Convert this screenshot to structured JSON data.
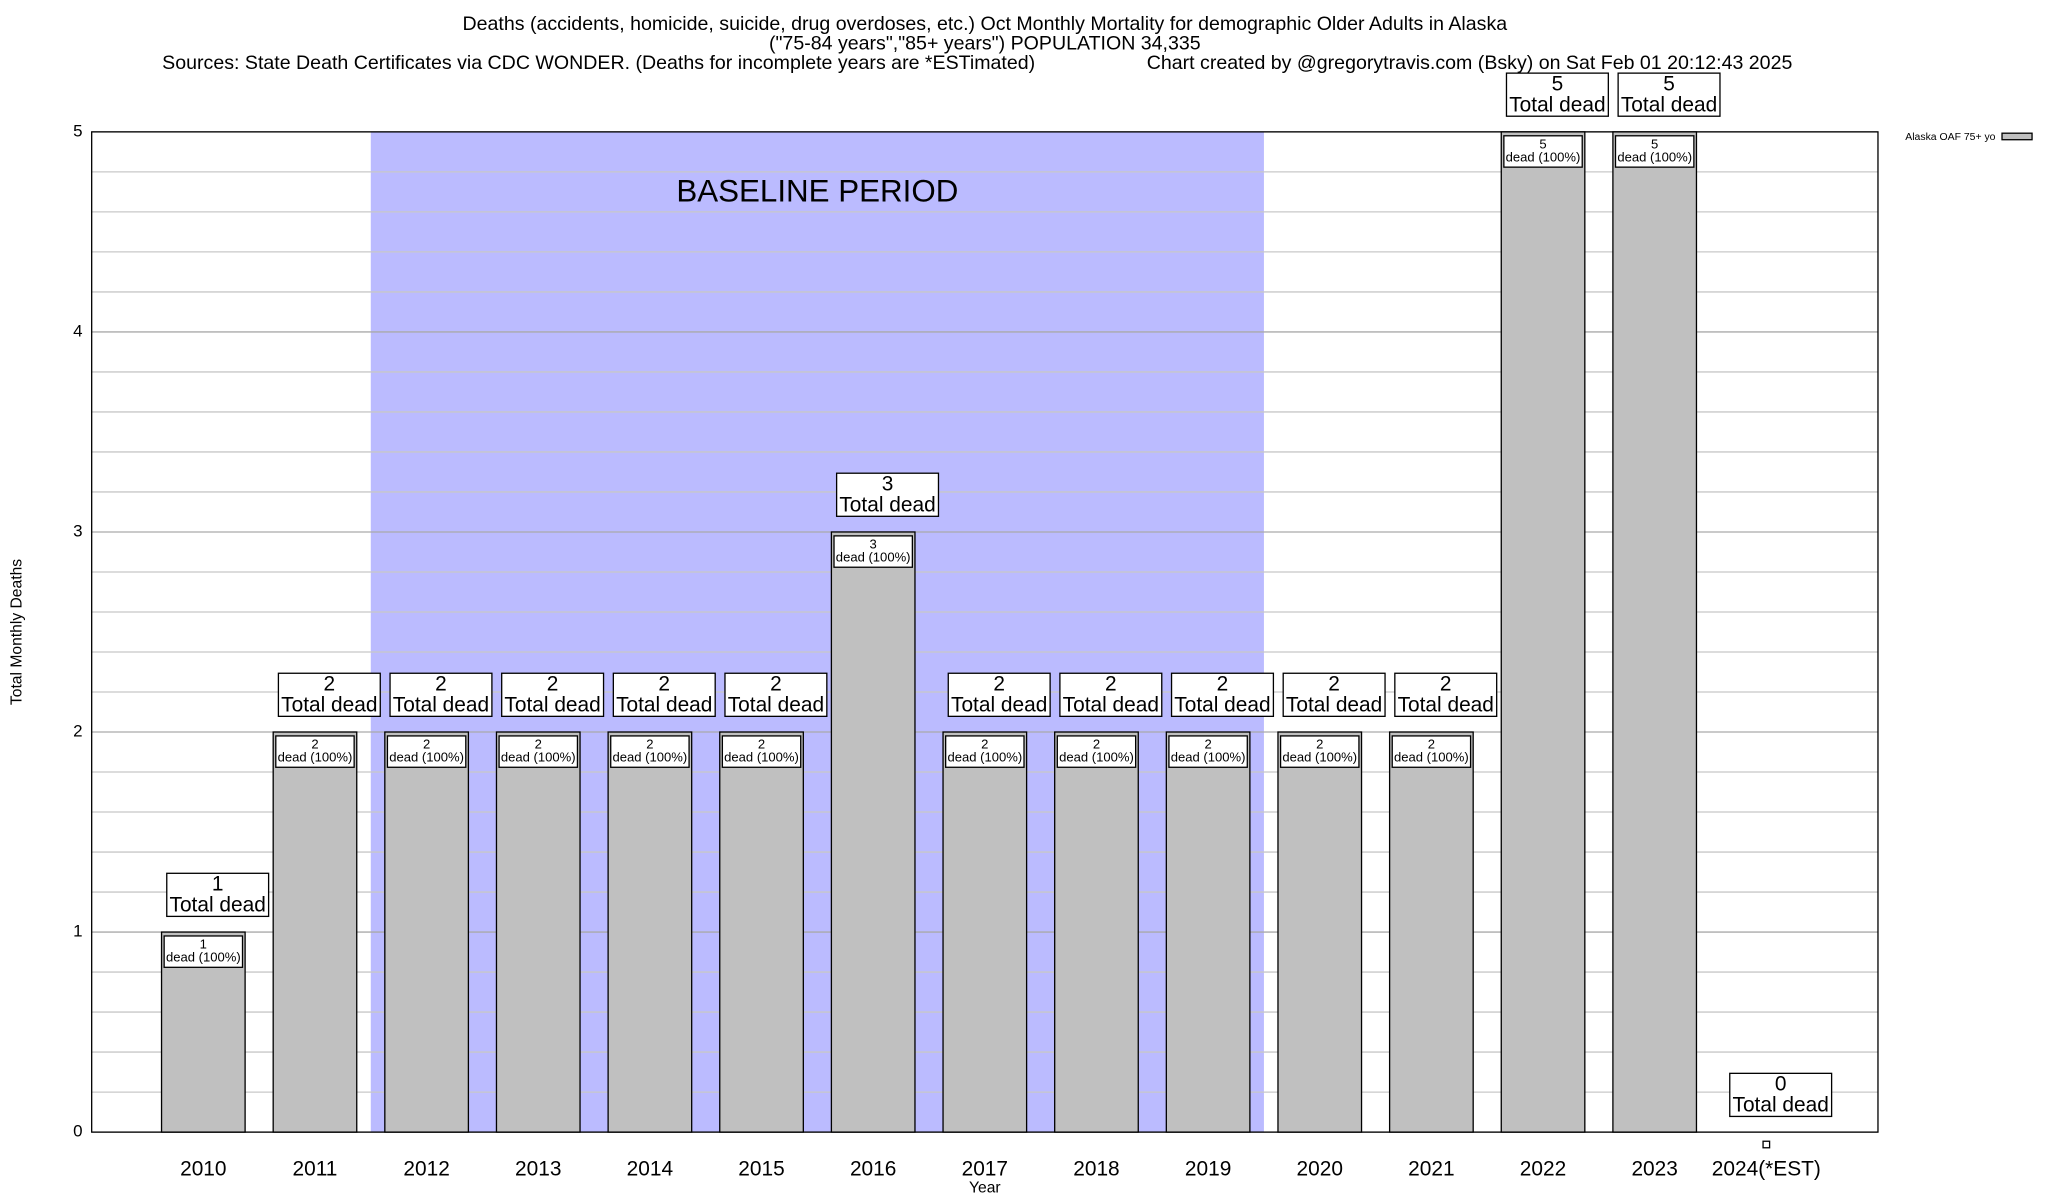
{
  "chart_data": {
    "type": "bar",
    "title": "Deaths (accidents, homicide, suicide, drug overdoses, etc.) Oct Monthly Mortality for demographic Older Adults in Alaska",
    "subtitle": "(\"75-84 years\",\"85+ years\") POPULATION 34,335",
    "source": "Sources: State Death Certificates via CDC WONDER. (Deaths for incomplete years are *ESTimated)",
    "credit": "Chart created by @gregorytravis.com (Bsky) on Sat Feb 01 20:12:43 2025",
    "x_label": "Year",
    "y_label": "Total Monthly Deaths",
    "categories": [
      "2010",
      "2011",
      "2012",
      "2013",
      "2014",
      "2015",
      "2016",
      "2017",
      "2018",
      "2019",
      "2020",
      "2021",
      "2022",
      "2023",
      "2024(*EST)"
    ],
    "series": [
      {
        "name": "Alaska OAF 75+ yo",
        "color": "#c0c0c0",
        "values": [
          1,
          2,
          2,
          2,
          2,
          2,
          3,
          2,
          2,
          2,
          2,
          2,
          5,
          5,
          0
        ]
      }
    ],
    "total_label": "Total dead",
    "segment_label": "dead (100%)",
    "baseline": {
      "label": "BASELINE PERIOD",
      "start": "2012",
      "end": "2019",
      "color": "#bbbbff"
    },
    "ylim": [
      0,
      5
    ],
    "yticks": [
      0,
      1,
      2,
      3,
      4,
      5
    ],
    "yminorticks": [
      0.2,
      0.4,
      0.6,
      0.8,
      1.2,
      1.4,
      1.6,
      1.8,
      2.2,
      2.4,
      2.6,
      2.8,
      3.2,
      3.4,
      3.6,
      3.8,
      4.2,
      4.4,
      4.6,
      4.8
    ],
    "grid": true,
    "legend": "top-right"
  }
}
